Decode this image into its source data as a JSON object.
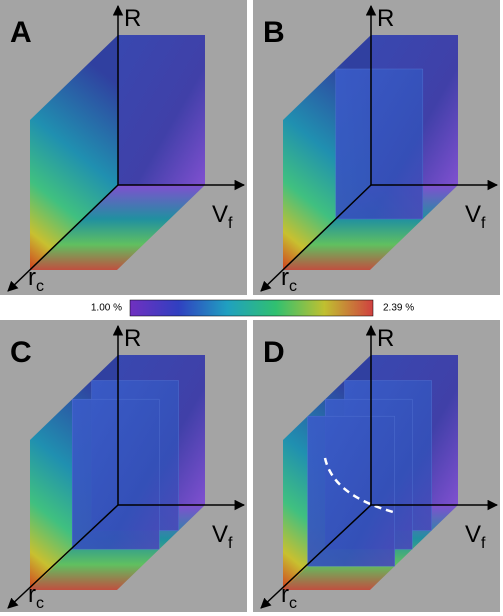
{
  "panels": [
    {
      "label": "A"
    },
    {
      "label": "B"
    },
    {
      "label": "C"
    },
    {
      "label": "D"
    }
  ],
  "axis_labels": {
    "vertical": "R",
    "horizontal": "V",
    "horizontal_sub": "f",
    "depth": "r",
    "depth_sub": "c"
  },
  "colorbar": {
    "min_label": "1.00 %",
    "max_label": "2.39 %"
  }
}
